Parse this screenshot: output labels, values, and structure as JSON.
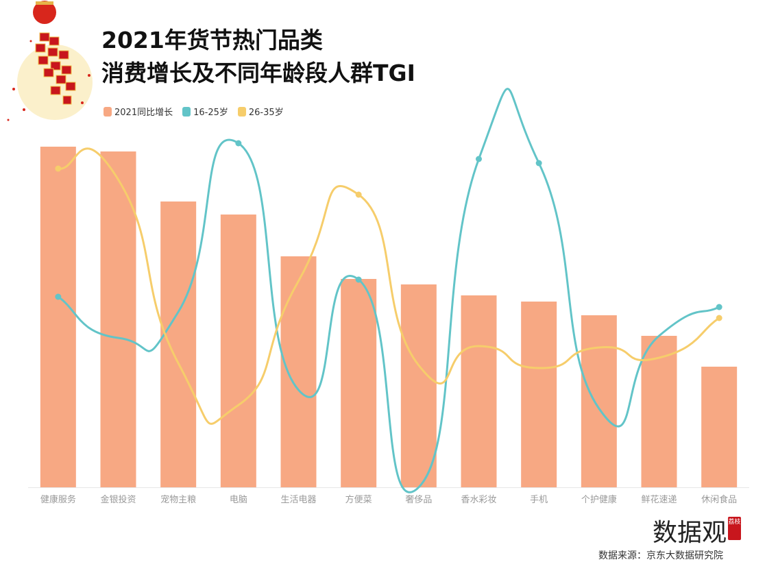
{
  "title_line1": "2021年货节热门品类",
  "title_line2": "消费增长及不同年龄段人群TGI",
  "logo": {
    "text": "数据观",
    "badge": "荔枝"
  },
  "source": "数据来源：京东大数据研究院",
  "chart_data": {
    "type": "bar+line",
    "title": "2021年货节热门品类 消费增长及不同年龄段人群TGI",
    "categories": [
      "健康服务",
      "金银投资",
      "宠物主粮",
      "电脑",
      "生活电器",
      "方便菜",
      "奢侈品",
      "香水彩妆",
      "手机",
      "个护健康",
      "鲜花速递",
      "休闲食品"
    ],
    "series": [
      {
        "name": "2021同比增长",
        "type": "bar",
        "color": "#f7a883",
        "values": [
          99.4,
          98,
          83.4,
          79.6,
          67.4,
          60.8,
          59.2,
          56,
          54.2,
          50.2,
          44.2,
          35.2
        ]
      },
      {
        "name": "16-25岁",
        "type": "line",
        "color": "#62c4c8",
        "values": [
          55.6,
          43.6,
          51.2,
          100.4,
          28.4,
          60.6,
          0,
          95.8,
          94.6,
          23,
          44.2,
          52.6
        ]
      },
      {
        "name": "26-35岁",
        "type": "line",
        "color": "#f6cd6b",
        "values": [
          93,
          89.8,
          36.2,
          24,
          60.2,
          85.4,
          35.6,
          41.2,
          34.8,
          40.8,
          37.8,
          49.4
        ]
      }
    ],
    "ylim": [
      0,
      100
    ],
    "y_axis_visible": false,
    "legend": "top-left",
    "grid": false
  }
}
